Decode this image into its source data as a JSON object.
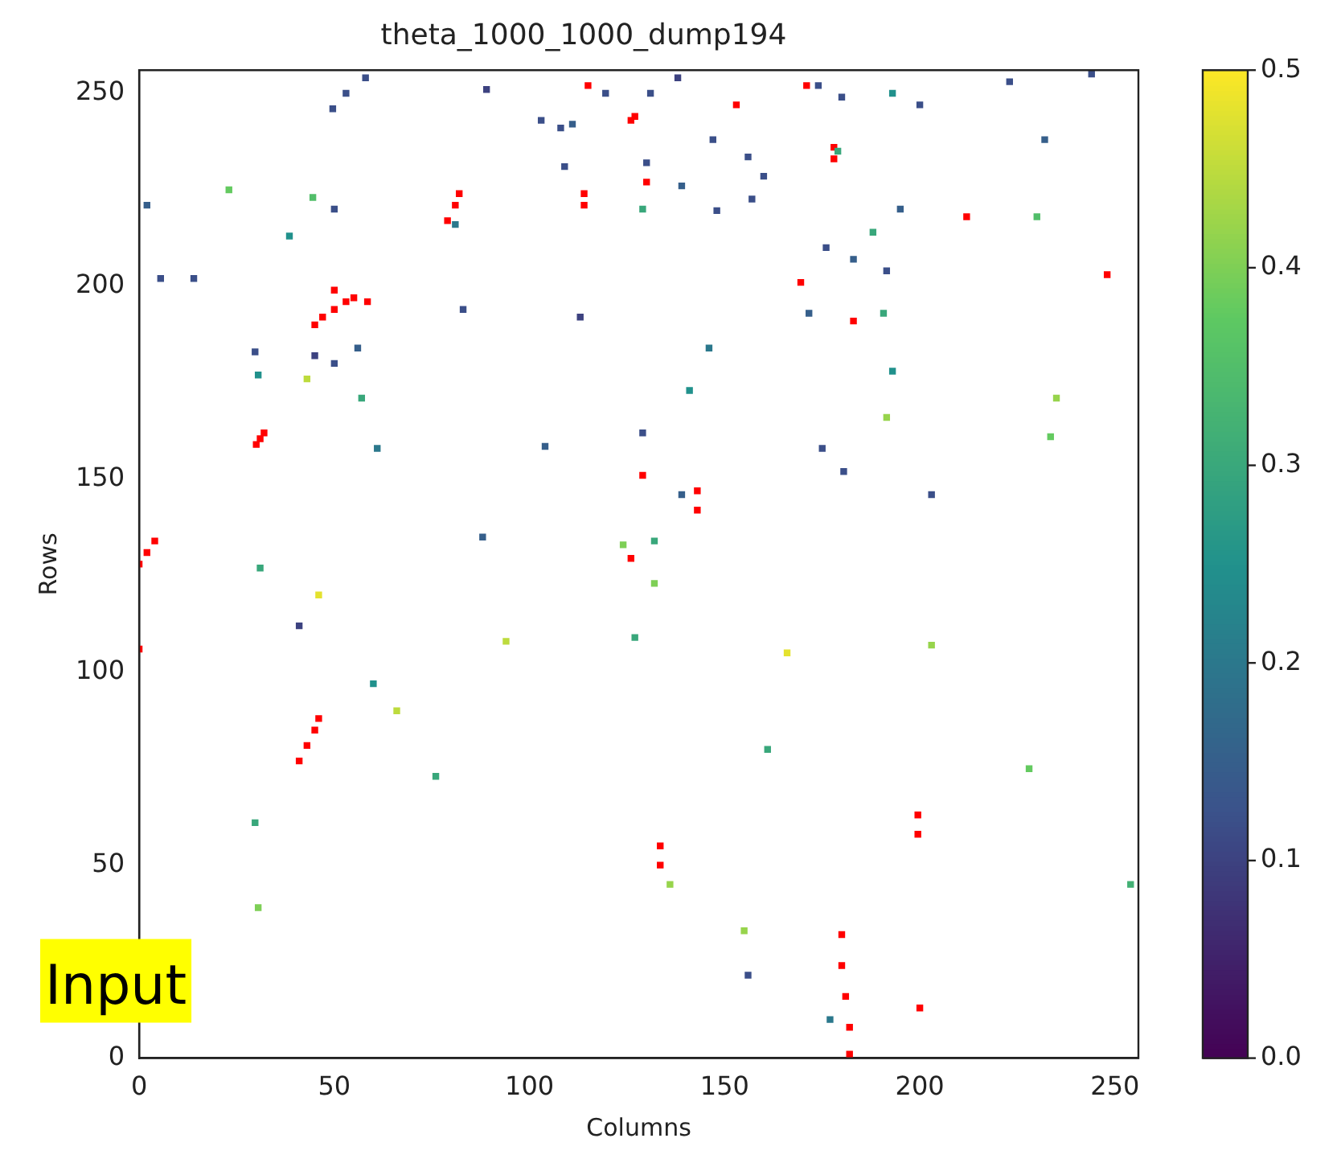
{
  "chart_data": {
    "type": "scatter",
    "title": "theta_1000_1000_dump194",
    "xlabel": "Columns",
    "ylabel": "Rows",
    "xlim": [
      0,
      256
    ],
    "ylim": [
      0,
      256
    ],
    "xticks": [
      0,
      50,
      100,
      150,
      200,
      250
    ],
    "yticks": [
      0,
      50,
      100,
      150,
      200,
      250
    ],
    "clim": [
      0,
      0.5
    ],
    "cticks": [
      {
        "value": 0,
        "label": "0.0"
      },
      0.1,
      0.2,
      0.3,
      0.4,
      0.5
    ],
    "grid": false,
    "legend": false,
    "marker": "square",
    "annotations": [
      "Input"
    ],
    "series": [
      {
        "x": [
          2,
          5.5,
          14,
          23,
          44.5,
          50,
          38.5,
          58,
          53,
          49.6,
          29.7,
          30.5,
          45,
          50,
          56,
          57,
          43,
          61,
          83,
          113,
          88,
          31,
          46,
          41,
          60,
          66,
          94,
          76,
          29.7,
          30.5,
          127,
          132,
          166,
          203,
          161,
          228,
          136,
          254,
          155,
          156,
          177,
          138,
          131,
          174,
          180,
          193,
          200,
          223,
          244,
          232,
          147,
          156,
          130,
          160,
          139,
          157,
          148,
          129,
          195,
          230,
          188,
          179,
          176,
          183,
          191.5,
          171.6,
          190.7,
          146,
          193,
          141,
          235,
          191.5,
          233.5,
          129,
          175,
          180.5,
          203,
          139,
          132,
          89,
          103,
          108,
          111,
          119.5,
          109,
          81,
          104,
          124
        ],
        "values": [
          221,
          202,
          202,
          225,
          223,
          220,
          213,
          254,
          250,
          246,
          183,
          177,
          182,
          180,
          184,
          171,
          176,
          158,
          194,
          192,
          135,
          127,
          120,
          112,
          97,
          90,
          108,
          73,
          61,
          39,
          109,
          123,
          105,
          107,
          80,
          75,
          45,
          45,
          33,
          21.5,
          10,
          254,
          250,
          252,
          249,
          250,
          247,
          253,
          255,
          238,
          238,
          233.5,
          232,
          228.5,
          226,
          222.6,
          219.6,
          220,
          220,
          218,
          214,
          235,
          210,
          207,
          204,
          193,
          193,
          184,
          178,
          173,
          171,
          166,
          161,
          162,
          158,
          152,
          146,
          146,
          134,
          251,
          243,
          241,
          242,
          250,
          231,
          216,
          158.5,
          133
        ],
        "cvalues": [
          0.15,
          0.12,
          0.12,
          0.38,
          0.35,
          0.12,
          0.25,
          0.12,
          0.12,
          0.12,
          0.12,
          0.25,
          0.1,
          0.12,
          0.15,
          0.3,
          0.45,
          0.2,
          0.12,
          0.1,
          0.15,
          0.3,
          0.48,
          0.1,
          0.25,
          0.45,
          0.45,
          0.3,
          0.3,
          0.4,
          0.3,
          0.4,
          0.48,
          0.42,
          0.3,
          0.38,
          0.42,
          0.32,
          0.42,
          0.12,
          0.2,
          0.1,
          0.12,
          0.12,
          0.12,
          0.25,
          0.12,
          0.12,
          0.12,
          0.15,
          0.12,
          0.12,
          0.12,
          0.12,
          0.15,
          0.12,
          0.12,
          0.3,
          0.15,
          0.35,
          0.3,
          0.3,
          0.12,
          0.15,
          0.12,
          0.15,
          0.3,
          0.2,
          0.25,
          0.25,
          0.42,
          0.42,
          0.38,
          0.12,
          0.12,
          0.12,
          0.12,
          0.15,
          0.3,
          0.1,
          0.12,
          0.12,
          0.15,
          0.12,
          0.12,
          0.2,
          0.15,
          0.4
        ],
        "colors": [
          "#365f8b",
          "#3b4f89",
          "#3b4f89",
          "#64ca60",
          "#52be6a",
          "#3b4f89",
          "#21918c",
          "#3b4f89",
          "#3b4f89",
          "#3b4f89",
          "#3b4f89",
          "#21918c",
          "#3d4280",
          "#3b4f89",
          "#365f8b",
          "#39a77b",
          "#bddb3d",
          "#2b788c",
          "#3b4f89",
          "#3d4280",
          "#365f8b",
          "#39a77b",
          "#e4e22f",
          "#3d4280",
          "#21918c",
          "#bddb3d",
          "#bddb3d",
          "#39a77b",
          "#39a77b",
          "#7ecf56",
          "#39a77b",
          "#7ecf56",
          "#e4e22f",
          "#97d44c",
          "#39a77b",
          "#64ca60",
          "#97d44c",
          "#43b074",
          "#97d44c",
          "#3b4f89",
          "#2b788c",
          "#3d4280",
          "#3b4f89",
          "#3b4f89",
          "#3b4f89",
          "#21918c",
          "#3b4f89",
          "#3b4f89",
          "#3b4f89",
          "#365f8b",
          "#3b4f89",
          "#3b4f89",
          "#3b4f89",
          "#3b4f89",
          "#365f8b",
          "#3b4f89",
          "#3b4f89",
          "#39a77b",
          "#365f8b",
          "#52be6a",
          "#39a77b",
          "#39a77b",
          "#3b4f89",
          "#365f8b",
          "#3b4f89",
          "#365f8b",
          "#39a77b",
          "#2b788c",
          "#21918c",
          "#21918c",
          "#97d44c",
          "#97d44c",
          "#64ca60",
          "#3b4f89",
          "#3b4f89",
          "#3b4f89",
          "#3b4f89",
          "#365f8b",
          "#39a77b",
          "#3d4280",
          "#3b4f89",
          "#3b4f89",
          "#365f8b",
          "#3b4f89",
          "#3b4f89",
          "#2b788c",
          "#365f8b",
          "#7ecf56"
        ]
      },
      {
        "color": "#ff0000",
        "x": [
          0,
          2,
          4,
          0,
          79,
          81,
          82,
          114,
          114,
          115,
          126,
          45,
          47,
          50,
          53,
          55,
          50,
          58.5,
          30,
          31,
          32,
          41,
          43,
          45,
          46,
          171,
          153,
          178,
          178,
          130,
          127,
          212,
          248,
          169.5,
          183,
          129,
          143,
          143,
          126,
          133.5,
          133.5,
          199.5,
          199.5,
          180,
          180,
          181,
          182,
          182,
          200
        ],
        "values": [
          128,
          131,
          134,
          106,
          217,
          221,
          224,
          221,
          224,
          252,
          243,
          190,
          192,
          194,
          196,
          197,
          199,
          196,
          159,
          160.5,
          162,
          77,
          81,
          85,
          88,
          252,
          247,
          233,
          236,
          227,
          244,
          218,
          203,
          201,
          191,
          151,
          142,
          147,
          129.5,
          50,
          55,
          58,
          63,
          32,
          24,
          16,
          8,
          1,
          13
        ]
      }
    ]
  }
}
